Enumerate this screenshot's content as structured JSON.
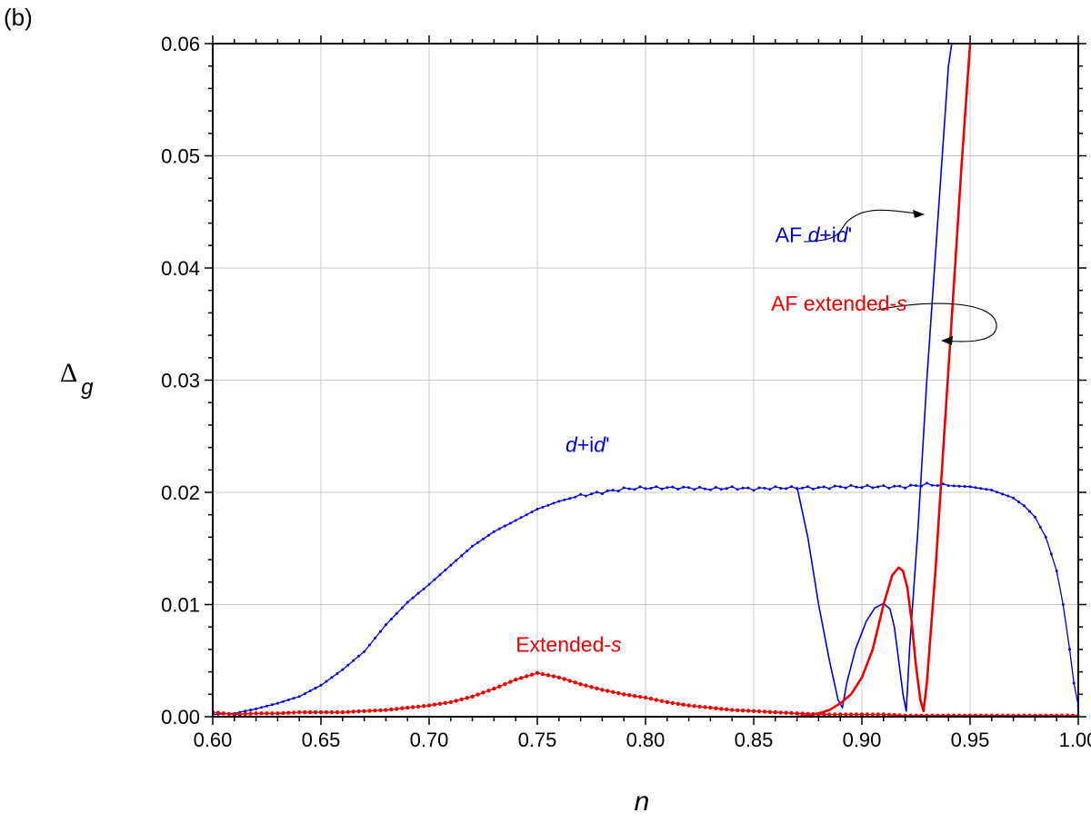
{
  "panel_label": "(b)",
  "chart_data": {
    "type": "line",
    "xlabel": "n",
    "ylabel_main": "Δ",
    "ylabel_sub": "g",
    "xlim": [
      0.6,
      1.0
    ],
    "ylim": [
      0.0,
      0.06
    ],
    "x_ticks": [
      0.6,
      0.65,
      0.7,
      0.75,
      0.8,
      0.85,
      0.9,
      0.95,
      1.0
    ],
    "x_tick_labels": [
      "0.60",
      "0.65",
      "0.70",
      "0.75",
      "0.80",
      "0.85",
      "0.90",
      "0.95",
      "1.00"
    ],
    "y_ticks": [
      0.0,
      0.01,
      0.02,
      0.03,
      0.04,
      0.05,
      0.06
    ],
    "y_tick_labels": [
      "0.00",
      "0.01",
      "0.02",
      "0.03",
      "0.04",
      "0.05",
      "0.06"
    ],
    "grid": true,
    "colors": {
      "blue": "#0000dd",
      "red": "#ee0000"
    },
    "series": [
      {
        "key": "dpid",
        "color": "#0000dd",
        "points_marked": true,
        "x": [
          0.6,
          0.61,
          0.62,
          0.63,
          0.64,
          0.65,
          0.66,
          0.67,
          0.68,
          0.69,
          0.7,
          0.71,
          0.72,
          0.73,
          0.74,
          0.75,
          0.76,
          0.77,
          0.78,
          0.79,
          0.8,
          0.81,
          0.82,
          0.83,
          0.84,
          0.85,
          0.86,
          0.87,
          0.88,
          0.89,
          0.9,
          0.91,
          0.92,
          0.93,
          0.94,
          0.95,
          0.96,
          0.97,
          0.975,
          0.98,
          0.985,
          0.99,
          0.993,
          0.996,
          0.998,
          1.0
        ],
        "y": [
          0.0002,
          0.0003,
          0.0007,
          0.0012,
          0.0018,
          0.0028,
          0.0042,
          0.0058,
          0.0082,
          0.0102,
          0.0118,
          0.0135,
          0.0152,
          0.0165,
          0.0175,
          0.0185,
          0.0192,
          0.0197,
          0.02,
          0.0203,
          0.0204,
          0.0204,
          0.0204,
          0.0203,
          0.0204,
          0.0203,
          0.0204,
          0.0204,
          0.0204,
          0.0205,
          0.0205,
          0.0205,
          0.0205,
          0.0207,
          0.0206,
          0.0205,
          0.0202,
          0.0195,
          0.0188,
          0.0178,
          0.016,
          0.013,
          0.01,
          0.006,
          0.003,
          0.001
        ]
      },
      {
        "key": "ext_s",
        "color": "#ee0000",
        "points_marked": true,
        "x": [
          0.6,
          0.61,
          0.62,
          0.63,
          0.64,
          0.65,
          0.66,
          0.67,
          0.68,
          0.69,
          0.7,
          0.71,
          0.72,
          0.73,
          0.74,
          0.75,
          0.76,
          0.77,
          0.78,
          0.79,
          0.8,
          0.81,
          0.82,
          0.83,
          0.84,
          0.85,
          0.86,
          0.87,
          0.88,
          0.89,
          0.9,
          0.91,
          0.92,
          0.93,
          0.94,
          0.95,
          0.96,
          0.97,
          0.98,
          0.99,
          1.0
        ],
        "y": [
          0.0004,
          0.0002,
          0.0003,
          0.0003,
          0.0004,
          0.0004,
          0.0004,
          0.0005,
          0.0006,
          0.0008,
          0.001,
          0.0013,
          0.0018,
          0.0025,
          0.0033,
          0.0039,
          0.0035,
          0.0029,
          0.0024,
          0.002,
          0.0017,
          0.0013,
          0.001,
          0.0008,
          0.0006,
          0.0005,
          0.0004,
          0.0003,
          0.0002,
          0.0002,
          0.0002,
          0.0002,
          0.0001,
          0.0001,
          0.0001,
          0.0001,
          0.0001,
          0.0001,
          0.0001,
          0.0001,
          0.0001
        ]
      },
      {
        "key": "af_dpid",
        "color": "#0000dd",
        "points_marked": false,
        "x": [
          0.87,
          0.875,
          0.88,
          0.885,
          0.889,
          0.891,
          0.893,
          0.897,
          0.902,
          0.906,
          0.91,
          0.913,
          0.915,
          0.917,
          0.919,
          0.9205,
          0.922,
          0.926,
          0.93,
          0.935,
          0.94,
          0.9415
        ],
        "y": [
          0.0205,
          0.016,
          0.01,
          0.005,
          0.0015,
          0.0008,
          0.003,
          0.006,
          0.0085,
          0.0097,
          0.0101,
          0.0096,
          0.008,
          0.005,
          0.002,
          0.0005,
          0.006,
          0.017,
          0.03,
          0.044,
          0.058,
          0.06
        ]
      },
      {
        "key": "af_ext_s",
        "color": "#ee0000",
        "points_marked": false,
        "thick": true,
        "x": [
          0.87,
          0.875,
          0.88,
          0.885,
          0.89,
          0.895,
          0.9,
          0.905,
          0.91,
          0.914,
          0.917,
          0.919,
          0.921,
          0.923,
          0.925,
          0.927,
          0.9285,
          0.93,
          0.934,
          0.938,
          0.942,
          0.946,
          0.95
        ],
        "y": [
          0.0,
          0.0001,
          0.0003,
          0.0006,
          0.0012,
          0.002,
          0.0035,
          0.006,
          0.01,
          0.0126,
          0.0133,
          0.013,
          0.0115,
          0.0085,
          0.0045,
          0.0015,
          0.0005,
          0.003,
          0.013,
          0.025,
          0.037,
          0.049,
          0.06
        ]
      }
    ],
    "annotations": [
      {
        "key": "af_dpid",
        "color": "#0000dd",
        "plain": "AF ",
        "parts": [
          [
            "d",
            true
          ],
          [
            "+i",
            false
          ],
          [
            "d",
            true
          ],
          [
            "'",
            false
          ]
        ],
        "at": [
          0.86,
          0.0423
        ]
      },
      {
        "key": "af_ext_s",
        "color": "#ee0000",
        "plain": "AF extended-",
        "parts": [
          [
            "s",
            true
          ]
        ],
        "at": [
          0.858,
          0.0362
        ]
      },
      {
        "key": "dpid",
        "color": "#0000dd",
        "plain": "",
        "parts": [
          [
            "d",
            true
          ],
          [
            "+i",
            false
          ],
          [
            "d",
            true
          ],
          [
            "'",
            false
          ]
        ],
        "at": [
          0.763,
          0.0236
        ]
      },
      {
        "key": "ext_s",
        "color": "#ee0000",
        "plain": "Extended-",
        "parts": [
          [
            "s",
            true
          ]
        ],
        "at": [
          0.74,
          0.0058
        ]
      }
    ]
  }
}
